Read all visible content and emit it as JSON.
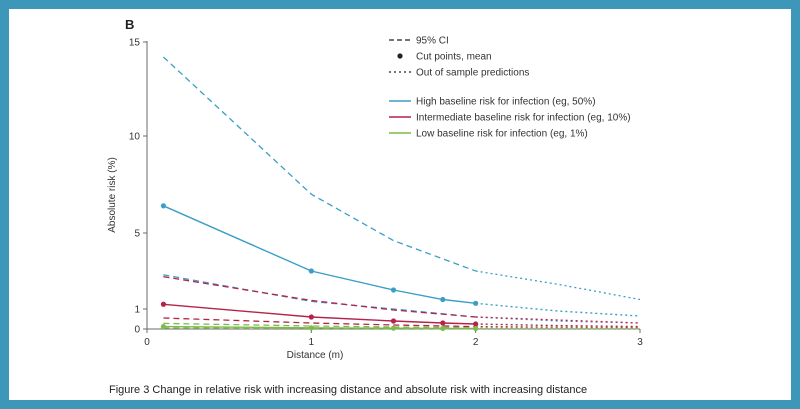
{
  "panel_label": "B",
  "caption": "Figure 3 Change in relative risk with increasing distance and absolute risk with increasing distance",
  "chart_data": {
    "type": "line",
    "xlabel": "Distance (m)",
    "ylabel": "Absolute risk (%)",
    "xlim": [
      0,
      3
    ],
    "ylim": [
      0,
      15
    ],
    "x_ticks": [
      0,
      1,
      2,
      3
    ],
    "y_ticks": [
      0,
      1,
      5,
      10,
      15
    ],
    "grid": false,
    "legend_styles": [
      {
        "style": "dashed",
        "label": "95% CI"
      },
      {
        "style": "points",
        "label": "Cut points, mean"
      },
      {
        "style": "dotted",
        "label": "Out of sample predictions"
      }
    ],
    "legend_series": [
      {
        "label": "High baseline risk for infection (eg, 50%)",
        "color": "#3c9ec6"
      },
      {
        "label": "Intermediate baseline risk for infection (eg, 10%)",
        "color": "#b5234a"
      },
      {
        "label": "Low baseline risk for infection (eg, 1%)",
        "color": "#7dbb4a"
      }
    ],
    "series": [
      {
        "color": "#3c9ec6",
        "mean": {
          "x": [
            0.1,
            1,
            1.5,
            1.8,
            2.0
          ],
          "y": [
            6.4,
            3.0,
            2.0,
            1.5,
            1.3
          ]
        },
        "mean_extrapolated": {
          "x": [
            2.0,
            2.5,
            3.0
          ],
          "y": [
            1.3,
            0.9,
            0.65
          ]
        },
        "ci_upper": {
          "x": [
            0.1,
            1,
            1.5,
            2.0
          ],
          "y": [
            14.2,
            7.0,
            4.6,
            3.0
          ]
        },
        "ci_upper_extrapolated": {
          "x": [
            2.0,
            2.5,
            3.0
          ],
          "y": [
            3.0,
            2.3,
            1.5
          ]
        },
        "ci_lower": {
          "x": [
            0.1,
            1,
            1.5,
            2.0
          ],
          "y": [
            2.8,
            1.4,
            1.0,
            0.6
          ]
        },
        "ci_lower_extrapolated": {
          "x": [
            2.0,
            2.5,
            3.0
          ],
          "y": [
            0.6,
            0.4,
            0.3
          ]
        }
      },
      {
        "color": "#b5234a",
        "mean": {
          "x": [
            0.1,
            1,
            1.5,
            1.8,
            2.0
          ],
          "y": [
            1.25,
            0.6,
            0.4,
            0.3,
            0.25
          ]
        },
        "mean_extrapolated": {
          "x": [
            2.0,
            2.5,
            3.0
          ],
          "y": [
            0.25,
            0.17,
            0.12
          ]
        },
        "ci_upper": {
          "x": [
            0.1,
            1,
            1.5,
            2.0
          ],
          "y": [
            2.7,
            1.45,
            0.95,
            0.6
          ]
        },
        "ci_upper_extrapolated": {
          "x": [
            2.0,
            2.5,
            3.0
          ],
          "y": [
            0.6,
            0.45,
            0.3
          ]
        },
        "ci_lower": {
          "x": [
            0.1,
            1,
            1.5,
            2.0
          ],
          "y": [
            0.55,
            0.3,
            0.2,
            0.12
          ]
        },
        "ci_lower_extrapolated": {
          "x": [
            2.0,
            2.5,
            3.0
          ],
          "y": [
            0.12,
            0.09,
            0.06
          ]
        }
      },
      {
        "color": "#7dbb4a",
        "mean": {
          "x": [
            0.1,
            1,
            1.5,
            1.8,
            2.0
          ],
          "y": [
            0.12,
            0.06,
            0.04,
            0.03,
            0.025
          ]
        },
        "mean_extrapolated": {
          "x": [
            2.0,
            2.5,
            3.0
          ],
          "y": [
            0.025,
            0.02,
            0.015
          ]
        },
        "ci_upper": {
          "x": [
            0.1,
            1,
            1.5,
            2.0
          ],
          "y": [
            0.28,
            0.15,
            0.1,
            0.06
          ]
        },
        "ci_upper_extrapolated": {
          "x": [
            2.0,
            2.5,
            3.0
          ],
          "y": [
            0.06,
            0.045,
            0.03
          ]
        },
        "ci_lower": {
          "x": [
            0.1,
            1,
            1.5,
            2.0
          ],
          "y": [
            0.05,
            0.03,
            0.02,
            0.012
          ]
        },
        "ci_lower_extrapolated": {
          "x": [
            2.0,
            2.5,
            3.0
          ],
          "y": [
            0.012,
            0.009,
            0.006
          ]
        }
      }
    ]
  }
}
